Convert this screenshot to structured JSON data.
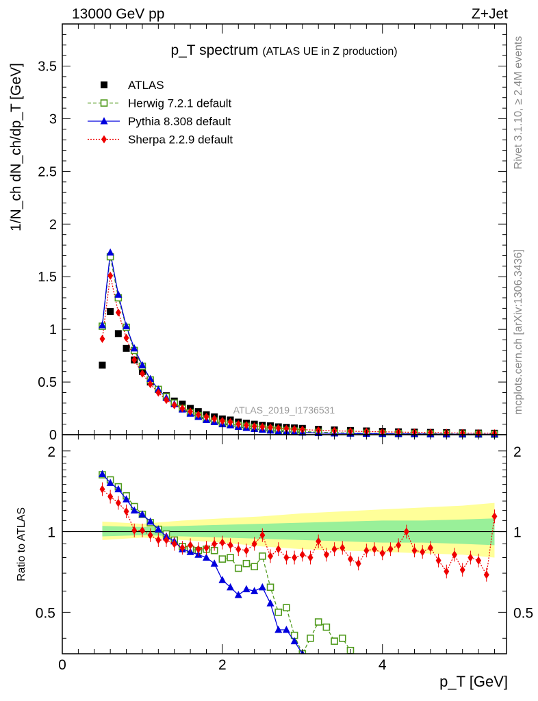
{
  "header": {
    "energy_label": "13000 GeV pp",
    "process_label": "Z+Jet"
  },
  "side_notes": {
    "rivet": "Rivet 3.1.10, ≥ 2.4M events",
    "mcplots": "mcplots.cern.ch [arXiv:1306.3436]"
  },
  "colors": {
    "atlas": "#000000",
    "herwig": "#4f9a1c",
    "pythia": "#0000dd",
    "sherpa": "#ee0000",
    "band_inner": "#99f099",
    "band_outer": "#ffff99"
  },
  "chart_data": [
    {
      "type": "line",
      "title": "p_T spectrum",
      "subtitle": "(ATLAS UE in Z production)",
      "analysis_label": "ATLAS_2019_I1736531",
      "xlabel": "p_T [GeV]",
      "ylabel": "1/N_ch dN_ch/dp_T [GeV]",
      "xlim": [
        0,
        5.55
      ],
      "ylim": [
        0,
        3.9
      ],
      "y_ticks": [
        "0",
        "0.5",
        "1",
        "1.5",
        "2",
        "2.5",
        "3",
        "3.5"
      ],
      "legend_position": "top-left",
      "grid": false,
      "x": [
        0.5,
        0.6,
        0.7,
        0.8,
        0.9,
        1.0,
        1.1,
        1.2,
        1.3,
        1.4,
        1.5,
        1.6,
        1.7,
        1.8,
        1.9,
        2.0,
        2.1,
        2.2,
        2.3,
        2.4,
        2.5,
        2.6,
        2.7,
        2.8,
        2.9,
        3.0,
        3.2,
        3.4,
        3.6,
        3.8,
        4.0,
        4.2,
        4.4,
        4.6,
        4.8,
        5.0,
        5.2,
        5.4
      ],
      "series": [
        {
          "name": "ATLAS",
          "marker": "square",
          "values": [
            0.66,
            1.17,
            0.96,
            0.82,
            0.71,
            0.6,
            0.5,
            0.43,
            0.37,
            0.32,
            0.29,
            0.25,
            0.22,
            0.19,
            0.17,
            0.15,
            0.14,
            0.12,
            0.11,
            0.1,
            0.09,
            0.085,
            0.075,
            0.07,
            0.065,
            0.06,
            0.052,
            0.046,
            0.04,
            0.036,
            0.032,
            0.028,
            0.025,
            0.022,
            0.02,
            0.018,
            0.016,
            0.014
          ]
        },
        {
          "name": "Herwig 7.2.1 default",
          "marker": "open-square",
          "values": [
            1.03,
            1.69,
            1.3,
            1.02,
            0.8,
            0.65,
            0.52,
            0.43,
            0.36,
            0.3,
            0.25,
            0.21,
            0.18,
            0.15,
            0.13,
            0.11,
            0.1,
            0.09,
            0.08,
            0.07,
            0.06,
            0.052,
            0.045,
            0.04,
            0.035,
            0.03,
            0.024,
            0.019,
            0.016,
            0.014,
            0.012,
            0.011,
            0.01,
            0.009,
            0.008,
            0.007,
            0.006,
            0.005
          ]
        },
        {
          "name": "Pythia 8.308 default",
          "marker": "triangle",
          "values": [
            1.04,
            1.73,
            1.33,
            1.03,
            0.82,
            0.66,
            0.53,
            0.43,
            0.35,
            0.29,
            0.24,
            0.2,
            0.17,
            0.14,
            0.12,
            0.1,
            0.09,
            0.075,
            0.065,
            0.055,
            0.048,
            0.04,
            0.032,
            0.028,
            0.024,
            0.02,
            0.016,
            0.013,
            0.011,
            0.01,
            0.009,
            0.008,
            0.007,
            0.006,
            0.005,
            0.005,
            0.004,
            0.004
          ]
        },
        {
          "name": "Sherpa 2.2.9 default",
          "marker": "diamond",
          "values": [
            0.91,
            1.51,
            1.16,
            0.92,
            0.71,
            0.58,
            0.48,
            0.4,
            0.33,
            0.28,
            0.25,
            0.22,
            0.19,
            0.17,
            0.15,
            0.13,
            0.12,
            0.1,
            0.09,
            0.08,
            0.075,
            0.068,
            0.062,
            0.057,
            0.052,
            0.048,
            0.042,
            0.037,
            0.033,
            0.03,
            0.027,
            0.025,
            0.022,
            0.02,
            0.018,
            0.016,
            0.015,
            0.014
          ]
        }
      ]
    },
    {
      "type": "line",
      "ylabel": "Ratio to ATLAS",
      "xlabel": "p_T [GeV]",
      "xlim": [
        0,
        5.55
      ],
      "ylim": [
        0.35,
        2.3
      ],
      "x_ticks": [
        "0",
        "2",
        "4"
      ],
      "y_ticks": [
        "0.5",
        "1",
        "2"
      ],
      "reference_line": 1,
      "series": [
        {
          "name": "Herwig 7.2.1 default",
          "x": [
            0.5,
            0.6,
            0.7,
            0.8,
            0.9,
            1.0,
            1.1,
            1.2,
            1.3,
            1.4,
            1.5,
            1.6,
            1.7,
            1.8,
            1.9,
            2.0,
            2.1,
            2.2,
            2.3,
            2.4,
            2.5,
            2.6,
            2.7,
            2.8,
            2.9,
            3.0,
            3.1,
            3.2,
            3.3,
            3.4,
            3.5,
            3.6
          ],
          "values": [
            1.63,
            1.56,
            1.47,
            1.36,
            1.24,
            1.16,
            1.08,
            1.02,
            0.98,
            0.93,
            0.88,
            0.86,
            0.85,
            0.86,
            0.85,
            0.79,
            0.8,
            0.73,
            0.76,
            0.74,
            0.81,
            0.62,
            0.5,
            0.52,
            0.41,
            0.35,
            0.4,
            0.46,
            0.44,
            0.39,
            0.4,
            0.36
          ]
        },
        {
          "name": "Pythia 8.308 default",
          "x": [
            0.5,
            0.6,
            0.7,
            0.8,
            0.9,
            1.0,
            1.1,
            1.2,
            1.3,
            1.4,
            1.5,
            1.6,
            1.7,
            1.8,
            1.9,
            2.0,
            2.1,
            2.2,
            2.3,
            2.4,
            2.5,
            2.6,
            2.7,
            2.8,
            2.9,
            3.0
          ],
          "values": [
            1.64,
            1.52,
            1.44,
            1.32,
            1.2,
            1.16,
            1.09,
            1.02,
            0.96,
            0.92,
            0.86,
            0.84,
            0.82,
            0.8,
            0.76,
            0.66,
            0.62,
            0.58,
            0.61,
            0.6,
            0.62,
            0.54,
            0.43,
            0.43,
            0.39,
            0.35
          ]
        },
        {
          "name": "Sherpa 2.2.9 default",
          "x": [
            0.5,
            0.6,
            0.7,
            0.8,
            0.9,
            1.0,
            1.1,
            1.2,
            1.3,
            1.4,
            1.5,
            1.6,
            1.7,
            1.8,
            1.9,
            2.0,
            2.1,
            2.2,
            2.3,
            2.4,
            2.5,
            2.6,
            2.7,
            2.8,
            2.9,
            3.0,
            3.1,
            3.2,
            3.3,
            3.4,
            3.5,
            3.6,
            3.7,
            3.8,
            3.9,
            4.0,
            4.1,
            4.2,
            4.3,
            4.4,
            4.5,
            4.6,
            4.7,
            4.8,
            4.9,
            5.0,
            5.1,
            5.2,
            5.3,
            5.4
          ],
          "values": [
            1.44,
            1.35,
            1.28,
            1.19,
            1.01,
            1.01,
            0.97,
            0.93,
            0.93,
            0.9,
            0.87,
            0.89,
            0.86,
            0.87,
            0.9,
            0.91,
            0.89,
            0.86,
            0.85,
            0.9,
            0.97,
            0.81,
            0.86,
            0.8,
            0.8,
            0.82,
            0.8,
            0.92,
            0.82,
            0.86,
            0.87,
            0.79,
            0.76,
            0.85,
            0.86,
            0.83,
            0.86,
            0.89,
            1.0,
            0.85,
            0.84,
            0.87,
            0.78,
            0.71,
            0.82,
            0.72,
            0.8,
            0.78,
            0.69,
            1.14
          ]
        },
        {
          "name": "inner uncertainty band",
          "x": [
            0.5,
            1.0,
            1.5,
            2.0,
            2.5,
            3.0,
            3.5,
            4.0,
            4.5,
            5.0,
            5.4
          ],
          "lower": [
            0.96,
            0.97,
            0.96,
            0.95,
            0.94,
            0.93,
            0.92,
            0.91,
            0.91,
            0.9,
            0.89
          ],
          "upper": [
            1.05,
            1.04,
            1.05,
            1.06,
            1.07,
            1.08,
            1.09,
            1.1,
            1.1,
            1.11,
            1.12
          ]
        },
        {
          "name": "outer uncertainty band",
          "x": [
            0.5,
            1.0,
            1.5,
            2.0,
            2.5,
            3.0,
            3.5,
            4.0,
            4.5,
            5.0,
            5.4
          ],
          "lower": [
            0.93,
            0.95,
            0.93,
            0.91,
            0.88,
            0.86,
            0.85,
            0.84,
            0.83,
            0.82,
            0.8
          ],
          "upper": [
            1.09,
            1.07,
            1.1,
            1.12,
            1.14,
            1.17,
            1.19,
            1.21,
            1.23,
            1.25,
            1.28
          ]
        }
      ]
    }
  ]
}
